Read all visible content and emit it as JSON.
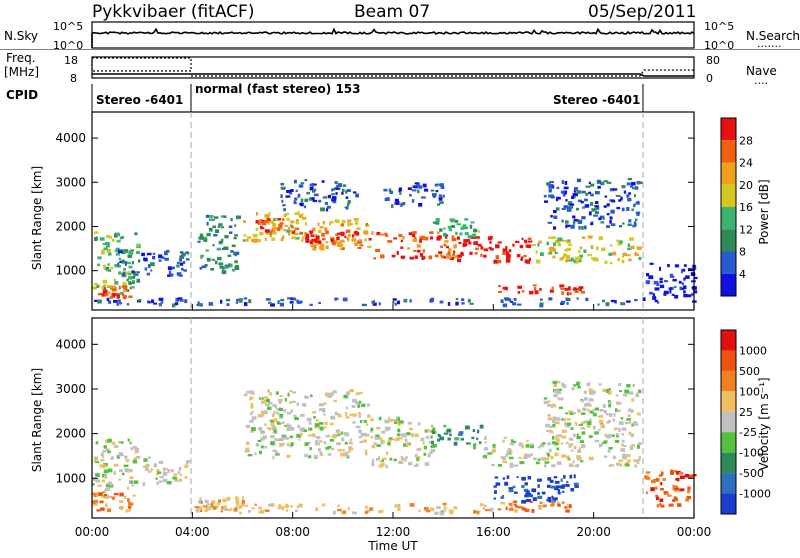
{
  "header": {
    "station": "Pykkvibaer (fitACF)",
    "beam": "Beam 07",
    "date": "05/Sep/2011"
  },
  "sky_panel": {
    "label": "N.Sky",
    "left_ticks": [
      "10^5",
      "10^0"
    ],
    "right_ticks": [
      "10^5",
      "10^0"
    ],
    "right_label": "N.Search",
    "right_label_dots": "......."
  },
  "freq_panel": {
    "label_line1": "Freq.",
    "label_line2": "[MHz]",
    "left_ticks": [
      "18",
      "8"
    ],
    "right_ticks": [
      "80",
      "0"
    ],
    "right_label": "Nave",
    "right_label_dots": "...."
  },
  "cpid": {
    "label": "CPID",
    "segments": [
      {
        "start_hour": 0,
        "end_hour": 4,
        "text": "Stereo -6401"
      },
      {
        "start_hour": 4,
        "end_hour": 22,
        "text": "normal (fast stereo) 153"
      },
      {
        "start_hour": 22,
        "end_hour": 24,
        "text": "Stereo -6401"
      }
    ]
  },
  "colors": {
    "power_scale": [
      "#1010e0",
      "#2a5ad0",
      "#2e8b57",
      "#3cb371",
      "#d4c820",
      "#f0a020",
      "#f06010",
      "#e81010"
    ],
    "velocity_scale": [
      "#1a3fd0",
      "#2f6fc0",
      "#2e8b57",
      "#55c040",
      "#c0c0c0",
      "#f0c060",
      "#f08020",
      "#f05010",
      "#e01010"
    ],
    "ground_scatter": "#b8b8b8"
  },
  "chart_data": [
    {
      "type": "heatmap",
      "name": "power",
      "x_unit": "hours UT",
      "xlim": [
        0,
        24
      ],
      "ylim": [
        200,
        4500
      ],
      "ylabel": "Slant Range [km]",
      "yticks": [
        1000,
        2000,
        3000,
        4000
      ],
      "colorbar_label": "Power [dB]",
      "colorbar_ticks": [
        "4",
        "8",
        "12",
        "16",
        "20",
        "24",
        "28"
      ],
      "bands": [
        {
          "t0": 0.0,
          "t1": 1.8,
          "r0": 500,
          "r1": 1900,
          "level": 3
        },
        {
          "t0": 0.2,
          "t1": 1.5,
          "r0": 400,
          "r1": 700,
          "level": 6
        },
        {
          "t0": 1.0,
          "t1": 3.8,
          "r0": 900,
          "r1": 1500,
          "level": 1
        },
        {
          "t0": 4.2,
          "t1": 5.8,
          "r0": 1000,
          "r1": 2300,
          "level": 2
        },
        {
          "t0": 6.0,
          "t1": 8.5,
          "r0": 1700,
          "r1": 2400,
          "level": 4
        },
        {
          "t0": 6.5,
          "t1": 8.0,
          "r0": 1900,
          "r1": 2200,
          "level": 6
        },
        {
          "t0": 8.0,
          "t1": 11.0,
          "r0": 1500,
          "r1": 2200,
          "level": 5
        },
        {
          "t0": 8.5,
          "t1": 10.5,
          "r0": 1650,
          "r1": 1950,
          "level": 7
        },
        {
          "t0": 11.0,
          "t1": 14.5,
          "r0": 1300,
          "r1": 1900,
          "level": 6
        },
        {
          "t0": 14.5,
          "t1": 17.5,
          "r0": 1200,
          "r1": 1800,
          "level": 7
        },
        {
          "t0": 13.5,
          "t1": 15.5,
          "r0": 1800,
          "r1": 2200,
          "level": 3
        },
        {
          "t0": 16.0,
          "t1": 19.5,
          "r0": 500,
          "r1": 700,
          "level": 7
        },
        {
          "t0": 17.5,
          "t1": 21.8,
          "r0": 1200,
          "r1": 1800,
          "level": 4
        },
        {
          "t0": 18.0,
          "t1": 21.8,
          "r0": 2000,
          "r1": 3100,
          "level": 1
        },
        {
          "t0": 7.5,
          "t1": 10.5,
          "r0": 2400,
          "r1": 3100,
          "level": 1
        },
        {
          "t0": 11.5,
          "t1": 14.0,
          "r0": 2500,
          "r1": 3000,
          "level": 1
        },
        {
          "t0": 22.0,
          "t1": 24.0,
          "r0": 300,
          "r1": 1200,
          "level": 0
        },
        {
          "t0": 0.0,
          "t1": 22.0,
          "r0": 250,
          "r1": 400,
          "level": 1
        }
      ]
    },
    {
      "type": "heatmap",
      "name": "velocity",
      "x_unit": "hours UT",
      "xlim": [
        0,
        24
      ],
      "ylim": [
        200,
        4500
      ],
      "ylabel": "Slant Range [km]",
      "yticks": [
        1000,
        2000,
        3000,
        4000
      ],
      "xlabel": "Time UT",
      "xticks": [
        "00:00",
        "04:00",
        "08:00",
        "12:00",
        "16:00",
        "20:00",
        "00:00"
      ],
      "colorbar_label": "Velocity [m s⁻¹]",
      "colorbar_ticks": [
        "1000",
        "500",
        "100",
        "25",
        "-25",
        "-100",
        "-500",
        "-1000"
      ],
      "bands": [
        {
          "t0": 0.0,
          "t1": 1.8,
          "r0": 600,
          "r1": 1900,
          "level": 4
        },
        {
          "t0": 0.0,
          "t1": 1.5,
          "r0": 300,
          "r1": 700,
          "level": 6
        },
        {
          "t0": 2.0,
          "t1": 3.8,
          "r0": 900,
          "r1": 1500,
          "level": 4
        },
        {
          "t0": 4.2,
          "t1": 6.0,
          "r0": 300,
          "r1": 600,
          "level": 5
        },
        {
          "t0": 6.0,
          "t1": 11.0,
          "r0": 1500,
          "r1": 3000,
          "level": 4
        },
        {
          "t0": 11.0,
          "t1": 13.5,
          "r0": 1300,
          "r1": 2400,
          "level": 4
        },
        {
          "t0": 13.5,
          "t1": 15.5,
          "r0": 1700,
          "r1": 2200,
          "level": 2
        },
        {
          "t0": 15.5,
          "t1": 21.8,
          "r0": 1300,
          "r1": 2000,
          "level": 4
        },
        {
          "t0": 16.0,
          "t1": 19.5,
          "r0": 500,
          "r1": 1100,
          "level": 0
        },
        {
          "t0": 16.0,
          "t1": 19.0,
          "r0": 300,
          "r1": 500,
          "level": 6
        },
        {
          "t0": 18.0,
          "t1": 21.8,
          "r0": 2000,
          "r1": 3200,
          "level": 4
        },
        {
          "t0": 22.0,
          "t1": 24.0,
          "r0": 400,
          "r1": 1200,
          "level": 7
        },
        {
          "t0": 4.0,
          "t1": 16.0,
          "r0": 250,
          "r1": 450,
          "level": 5
        }
      ]
    }
  ]
}
